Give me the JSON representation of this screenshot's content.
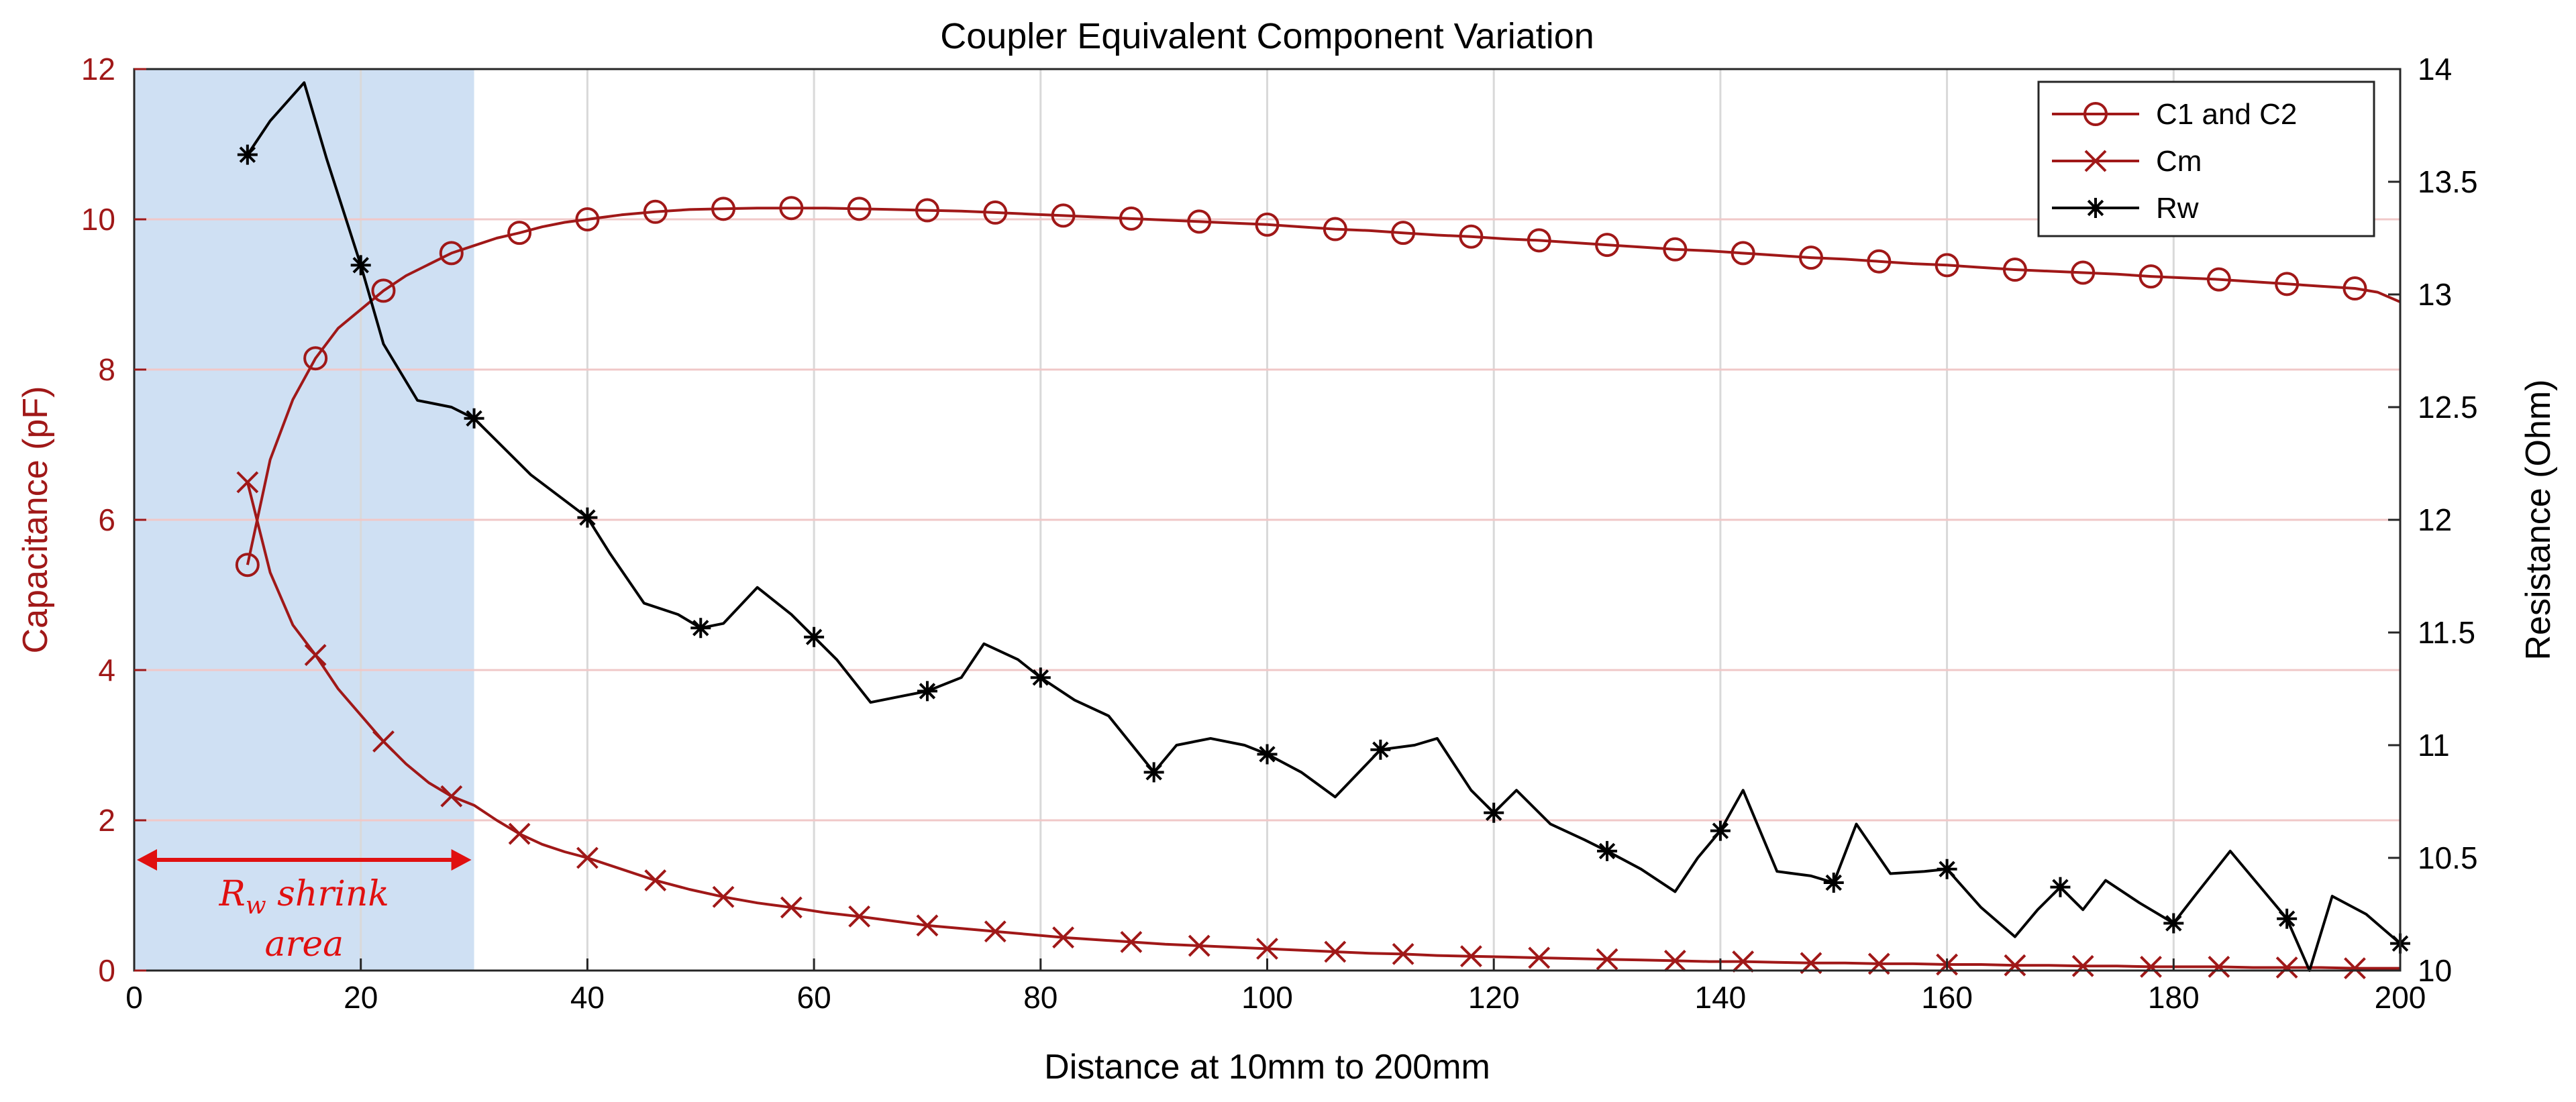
{
  "chart_data": {
    "type": "line",
    "title": "Coupler Equivalent Component Variation",
    "xlabel": "Distance at 10mm to 200mm",
    "ylabel_left": "Capacitance (pF)",
    "ylabel_right": "Resistance (Ohm)",
    "xlim": [
      0,
      200
    ],
    "ylim_left": [
      0,
      12
    ],
    "ylim_right": [
      10,
      14
    ],
    "x_ticks": [
      "0",
      "20",
      "40",
      "60",
      "80",
      "100",
      "120",
      "140",
      "160",
      "180",
      "200"
    ],
    "y_left_ticks": [
      "0",
      "2",
      "4",
      "6",
      "8",
      "10",
      "12"
    ],
    "y_right_ticks": [
      "10",
      "10.5",
      "11",
      "11.5",
      "12",
      "12.5",
      "13",
      "13.5",
      "14"
    ],
    "grid": true,
    "legend_position": "top-right",
    "colors": {
      "capacitance": "#a01818",
      "resistance": "#000000",
      "shade": "#cfe0f3",
      "annotation": "#e01010"
    },
    "series": [
      {
        "name": "C1 and C2",
        "axis": "left",
        "marker": "circle",
        "color": "#a01818",
        "x": [
          10,
          12,
          14,
          16,
          18,
          20,
          22,
          24,
          26,
          28,
          30,
          32,
          34,
          36,
          38,
          40,
          43,
          46,
          49,
          52,
          55,
          58,
          61,
          64,
          67,
          70,
          73,
          76,
          79,
          82,
          85,
          88,
          91,
          94,
          97,
          100,
          103,
          106,
          109,
          112,
          115,
          118,
          121,
          124,
          127,
          130,
          133,
          136,
          139,
          142,
          145,
          148,
          151,
          154,
          157,
          160,
          163,
          166,
          169,
          172,
          175,
          178,
          181,
          184,
          187,
          190,
          193,
          196,
          198,
          200
        ],
        "y": [
          5.4,
          6.8,
          7.6,
          8.15,
          8.55,
          8.8,
          9.05,
          9.25,
          9.4,
          9.55,
          9.65,
          9.75,
          9.82,
          9.9,
          9.96,
          10.0,
          10.06,
          10.1,
          10.13,
          10.14,
          10.15,
          10.15,
          10.15,
          10.14,
          10.13,
          10.12,
          10.11,
          10.09,
          10.07,
          10.05,
          10.03,
          10.01,
          9.99,
          9.97,
          9.95,
          9.93,
          9.9,
          9.87,
          9.85,
          9.82,
          9.79,
          9.77,
          9.74,
          9.72,
          9.69,
          9.66,
          9.63,
          9.6,
          9.58,
          9.55,
          9.52,
          9.49,
          9.47,
          9.44,
          9.41,
          9.39,
          9.36,
          9.33,
          9.31,
          9.29,
          9.27,
          9.24,
          9.22,
          9.2,
          9.17,
          9.14,
          9.11,
          9.08,
          9.03,
          8.9
        ],
        "markers_x": [
          10,
          16,
          22,
          28,
          34,
          40,
          46,
          52,
          58,
          64,
          70,
          76,
          82,
          88,
          94,
          100,
          106,
          112,
          118,
          124,
          130,
          136,
          142,
          148,
          154,
          160,
          166,
          172,
          178,
          184,
          190,
          196
        ]
      },
      {
        "name": "Cm",
        "axis": "left",
        "marker": "x",
        "color": "#a01818",
        "x": [
          10,
          12,
          14,
          16,
          18,
          20,
          22,
          24,
          26,
          28,
          30,
          32,
          34,
          36,
          38,
          40,
          43,
          46,
          49,
          52,
          55,
          58,
          61,
          64,
          67,
          70,
          73,
          76,
          79,
          82,
          85,
          88,
          91,
          94,
          97,
          100,
          103,
          106,
          109,
          112,
          115,
          118,
          121,
          124,
          127,
          130,
          133,
          136,
          139,
          142,
          145,
          148,
          151,
          154,
          157,
          160,
          163,
          166,
          169,
          172,
          175,
          178,
          181,
          184,
          187,
          190,
          193,
          196,
          198,
          200
        ],
        "y": [
          6.5,
          5.3,
          4.6,
          4.2,
          3.75,
          3.4,
          3.05,
          2.75,
          2.5,
          2.32,
          2.2,
          2.0,
          1.82,
          1.68,
          1.58,
          1.5,
          1.35,
          1.2,
          1.08,
          0.98,
          0.9,
          0.84,
          0.77,
          0.72,
          0.66,
          0.6,
          0.56,
          0.52,
          0.48,
          0.44,
          0.41,
          0.38,
          0.35,
          0.33,
          0.31,
          0.29,
          0.27,
          0.25,
          0.23,
          0.22,
          0.2,
          0.19,
          0.18,
          0.17,
          0.16,
          0.15,
          0.14,
          0.13,
          0.12,
          0.12,
          0.11,
          0.1,
          0.1,
          0.09,
          0.09,
          0.08,
          0.08,
          0.07,
          0.07,
          0.06,
          0.06,
          0.05,
          0.05,
          0.05,
          0.04,
          0.04,
          0.04,
          0.03,
          0.03,
          0.03
        ],
        "markers_x": [
          10,
          16,
          22,
          28,
          34,
          40,
          46,
          52,
          58,
          64,
          70,
          76,
          82,
          88,
          94,
          100,
          106,
          112,
          118,
          124,
          130,
          136,
          142,
          148,
          154,
          160,
          166,
          172,
          178,
          184,
          190,
          196
        ]
      },
      {
        "name": "Rw",
        "axis": "right",
        "marker": "asterisk",
        "color": "#000000",
        "x": [
          10,
          12,
          15,
          17,
          20,
          22,
          25,
          28,
          30,
          35,
          40,
          42,
          45,
          48,
          50,
          52,
          55,
          58,
          60,
          62,
          65,
          68,
          70,
          73,
          75,
          78,
          80,
          83,
          86,
          90,
          92,
          95,
          98,
          100,
          103,
          106,
          110,
          113,
          115,
          118,
          120,
          122,
          125,
          128,
          130,
          133,
          136,
          138,
          140,
          142,
          145,
          148,
          150,
          152,
          155,
          158,
          160,
          163,
          166,
          168,
          170,
          172,
          174,
          177,
          180,
          182,
          185,
          188,
          190,
          192,
          194,
          197,
          200
        ],
        "y": [
          13.62,
          13.77,
          13.94,
          13.6,
          13.13,
          12.78,
          12.53,
          12.5,
          12.45,
          12.2,
          12.01,
          11.85,
          11.63,
          11.58,
          11.52,
          11.54,
          11.7,
          11.58,
          11.48,
          11.38,
          11.19,
          11.22,
          11.24,
          11.3,
          11.45,
          11.38,
          11.3,
          11.2,
          11.13,
          10.88,
          11.0,
          11.03,
          11.0,
          10.96,
          10.88,
          10.77,
          10.98,
          11.0,
          11.03,
          10.8,
          10.7,
          10.8,
          10.65,
          10.58,
          10.53,
          10.45,
          10.35,
          10.5,
          10.62,
          10.8,
          10.44,
          10.42,
          10.39,
          10.65,
          10.43,
          10.44,
          10.45,
          10.28,
          10.15,
          10.27,
          10.37,
          10.27,
          10.4,
          10.3,
          10.21,
          10.34,
          10.53,
          10.35,
          10.23,
          10.0,
          10.33,
          10.25,
          10.12
        ],
        "markers_x": [
          10,
          20,
          30,
          40,
          50,
          60,
          70,
          80,
          90,
          100,
          110,
          120,
          130,
          140,
          150,
          160,
          170,
          180,
          190,
          200
        ]
      }
    ],
    "annotations": [
      {
        "text_main": "R",
        "text_sub": "w",
        "text_rest": " shrink",
        "text_line2": "area",
        "x_range": [
          0,
          30
        ]
      }
    ]
  }
}
